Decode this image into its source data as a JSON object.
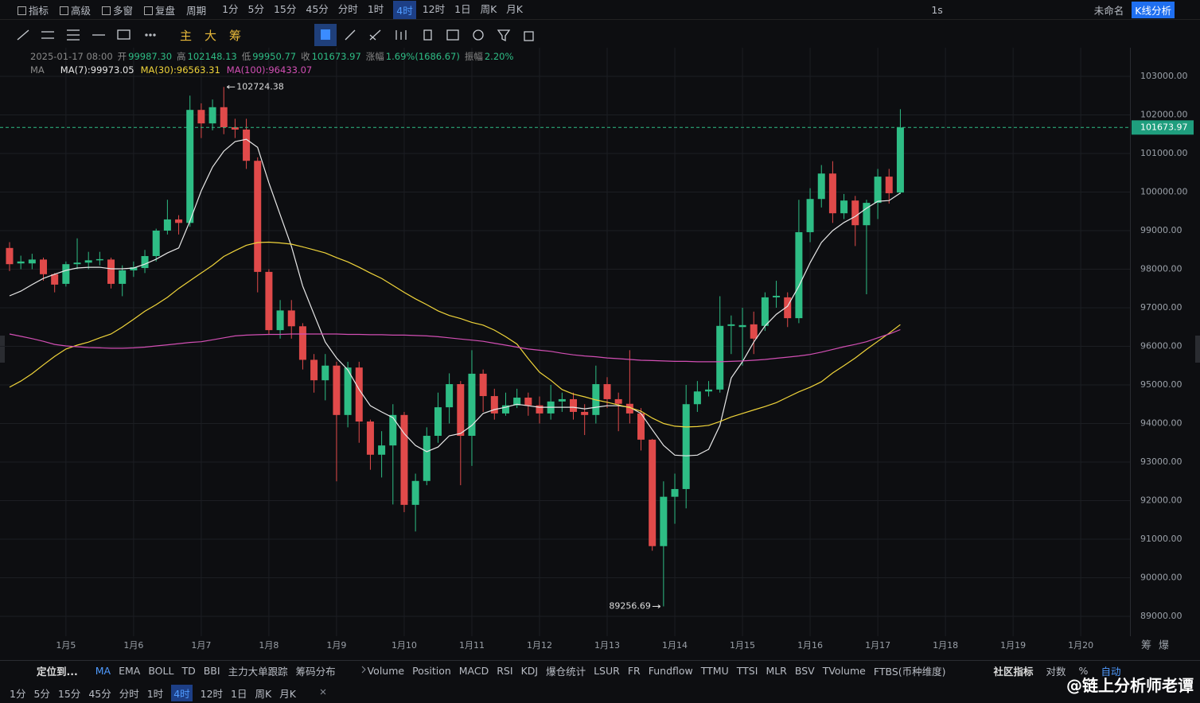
{
  "top_bar": {
    "left": [
      "指标",
      "高级",
      "多窗",
      "复盘"
    ],
    "period_label": "周期",
    "periods": [
      "1分",
      "5分",
      "15分",
      "45分",
      "分时",
      "1时",
      "4时",
      "12时",
      "1日",
      "周K",
      "月K"
    ],
    "active_period_index": 6,
    "interval": "1s",
    "layout_name": "未命名",
    "analysis": "K线分析"
  },
  "draw_toolbar": {
    "labels": [
      "主",
      "大",
      "筹"
    ]
  },
  "info": {
    "time": "2025-01-17 08:00",
    "items": [
      [
        "开",
        "99987.30"
      ],
      [
        "高",
        "102148.13"
      ],
      [
        "低",
        "99950.77"
      ],
      [
        "收",
        "101673.97"
      ],
      [
        "涨幅",
        "1.69%(1686.67)"
      ],
      [
        "振幅",
        "2.20%"
      ]
    ],
    "ma_label": "MA"
  },
  "chart_data": {
    "type": "candlestick",
    "categories": [
      null,
      null,
      null,
      null,
      null,
      "1月5",
      null,
      null,
      null,
      null,
      null,
      "1月6",
      null,
      null,
      null,
      null,
      null,
      "1月7",
      null,
      null,
      null,
      null,
      null,
      "1月8",
      null,
      null,
      null,
      null,
      null,
      "1月9",
      null,
      null,
      null,
      null,
      null,
      "1月10",
      null,
      null,
      null,
      null,
      null,
      "1月11",
      null,
      null,
      null,
      null,
      null,
      "1月12",
      null,
      null,
      null,
      null,
      null,
      "1月13",
      null,
      null,
      null,
      null,
      null,
      "1月14",
      null,
      null,
      null,
      null,
      null,
      "1月15",
      null,
      null,
      null,
      null,
      null,
      "1月16",
      null,
      null,
      null,
      null,
      null,
      "1月17",
      null,
      null
    ],
    "future_labels": [
      "1月18",
      "1月19",
      "1月20"
    ],
    "open": [
      98550,
      98150,
      98150,
      98250,
      97870,
      97620,
      98130,
      98170,
      98230,
      98250,
      97620,
      97970,
      98030,
      98340,
      99000,
      99290,
      99200,
      102130,
      101780,
      102200,
      101680,
      101620,
      100810,
      97930,
      96420,
      96930,
      96520,
      95650,
      95120,
      95500,
      94220,
      95450,
      94050,
      93190,
      93430,
      94220,
      91890,
      92510,
      93680,
      94420,
      95020,
      93680,
      95290,
      94710,
      94260,
      94470,
      94670,
      94470,
      94260,
      94570,
      94630,
      94300,
      94220,
      95020,
      94630,
      94510,
      94260,
      93580,
      90820,
      92100,
      92300,
      94500,
      94830,
      94880,
      96530,
      96500,
      96570,
      96530,
      97270,
      97270,
      96730,
      98960,
      99820,
      100480,
      99450,
      99780,
      99140,
      99720,
      100400,
      99987.3
    ],
    "high": [
      98700,
      98350,
      98400,
      98300,
      97900,
      98200,
      98800,
      98450,
      98450,
      98300,
      98100,
      98200,
      98500,
      99050,
      99800,
      99400,
      102500,
      102300,
      102400,
      102724.38,
      101900,
      101900,
      100900,
      98000,
      97200,
      97200,
      96600,
      95800,
      95800,
      95600,
      95600,
      95600,
      94100,
      93800,
      94500,
      94300,
      92700,
      93900,
      94800,
      95300,
      95100,
      95900,
      95400,
      94900,
      94800,
      94900,
      94800,
      94700,
      95000,
      94800,
      94800,
      94500,
      95500,
      95200,
      94800,
      95900,
      94400,
      93600,
      92500,
      92700,
      95000,
      95100,
      95100,
      97300,
      96800,
      97000,
      96900,
      97400,
      97700,
      97400,
      99800,
      100100,
      100700,
      100800,
      99950,
      99900,
      99800,
      100600,
      100600,
      102148.13
    ],
    "low": [
      97950,
      98000,
      98000,
      97700,
      97400,
      97550,
      98000,
      98000,
      98100,
      97500,
      97300,
      97800,
      97900,
      98200,
      98900,
      98900,
      99100,
      101400,
      101600,
      101500,
      101400,
      100600,
      97400,
      96300,
      96200,
      96200,
      95400,
      94800,
      94600,
      92500,
      93900,
      93500,
      92800,
      92600,
      91900,
      91700,
      91200,
      92400,
      93500,
      94000,
      92400,
      92900,
      94300,
      94100,
      94200,
      94400,
      94200,
      94000,
      94100,
      94300,
      94100,
      93700,
      94000,
      94400,
      93800,
      94000,
      93300,
      90700,
      89256.69,
      91400,
      91800,
      94300,
      94700,
      94800,
      95800,
      95500,
      95800,
      96400,
      97000,
      96500,
      96600,
      98700,
      99600,
      99200,
      99300,
      98600,
      97350,
      99300,
      99700,
      99950.77
    ],
    "close": [
      98130,
      98200,
      98250,
      97870,
      97600,
      98130,
      98170,
      98230,
      98260,
      97620,
      97970,
      98050,
      98340,
      99000,
      99290,
      99200,
      102130,
      101780,
      102200,
      101680,
      101620,
      100810,
      97930,
      96420,
      96930,
      96520,
      95650,
      95120,
      95500,
      94220,
      95450,
      94050,
      93190,
      93430,
      94220,
      91890,
      92510,
      93680,
      94420,
      95020,
      93680,
      95290,
      94710,
      94260,
      94470,
      94670,
      94470,
      94260,
      94570,
      94630,
      94300,
      94220,
      95020,
      94630,
      94510,
      94260,
      93580,
      90820,
      92100,
      92300,
      94500,
      94830,
      94880,
      96530,
      96570,
      96550,
      96200,
      97270,
      97310,
      96730,
      98960,
      99820,
      100480,
      99450,
      99780,
      99140,
      99720,
      100400,
      99970,
      101673.97
    ],
    "up_color": "#2ebd85",
    "down_color": "#e04a4a",
    "series": [
      {
        "name": "MA(7):99973.05",
        "color": "#e8e8e8",
        "values": [
          97310,
          97430,
          97600,
          97760,
          97870,
          97970,
          98030,
          98050,
          98050,
          98010,
          98010,
          98030,
          98130,
          98260,
          98420,
          98550,
          99250,
          100030,
          100650,
          101060,
          101310,
          101370,
          101160,
          100240,
          99410,
          98590,
          97560,
          96830,
          96110,
          95700,
          95390,
          94880,
          94460,
          94300,
          94150,
          93740,
          93430,
          93270,
          93390,
          93680,
          93740,
          93950,
          94260,
          94360,
          94420,
          94500,
          94460,
          94420,
          94420,
          94420,
          94420,
          94380,
          94420,
          94460,
          94460,
          94420,
          94260,
          93840,
          93430,
          93180,
          93160,
          93180,
          93330,
          93950,
          95180,
          95600,
          96110,
          96530,
          96830,
          97040,
          97560,
          98170,
          98690,
          99000,
          99210,
          99370,
          99580,
          99760,
          99780,
          99973.05
        ]
      },
      {
        "name": "MA(30):96563.31",
        "color": "#f0d43a",
        "values": [
          94940,
          95100,
          95290,
          95520,
          95740,
          95930,
          96030,
          96110,
          96220,
          96320,
          96500,
          96700,
          96910,
          97080,
          97270,
          97500,
          97700,
          97900,
          98100,
          98330,
          98480,
          98620,
          98690,
          98700,
          98680,
          98650,
          98580,
          98500,
          98420,
          98300,
          98190,
          98050,
          97900,
          97760,
          97580,
          97400,
          97230,
          97080,
          96920,
          96800,
          96720,
          96620,
          96550,
          96420,
          96250,
          96060,
          95680,
          95330,
          95120,
          94880,
          94760,
          94690,
          94610,
          94550,
          94480,
          94410,
          94320,
          94140,
          94000,
          93930,
          93910,
          93920,
          93950,
          94050,
          94170,
          94260,
          94350,
          94440,
          94540,
          94680,
          94820,
          94940,
          95080,
          95310,
          95500,
          95700,
          95920,
          96130,
          96340,
          96563.31
        ]
      },
      {
        "name": "MA(100):96433.07",
        "color": "#d24fb4",
        "values": [
          96320,
          96260,
          96200,
          96130,
          96050,
          96010,
          95990,
          95970,
          95960,
          95950,
          95950,
          95960,
          95980,
          96010,
          96040,
          96070,
          96100,
          96120,
          96170,
          96220,
          96270,
          96290,
          96300,
          96310,
          96310,
          96320,
          96320,
          96320,
          96320,
          96320,
          96310,
          96310,
          96300,
          96300,
          96290,
          96290,
          96280,
          96270,
          96250,
          96220,
          96190,
          96160,
          96130,
          96080,
          96030,
          95980,
          95930,
          95900,
          95870,
          95820,
          95780,
          95750,
          95730,
          95700,
          95680,
          95660,
          95640,
          95630,
          95620,
          95610,
          95610,
          95600,
          95600,
          95600,
          95610,
          95620,
          95640,
          95660,
          95690,
          95720,
          95750,
          95790,
          95850,
          95920,
          95990,
          96050,
          96120,
          96220,
          96320,
          96433.07
        ]
      }
    ],
    "ylim": [
      88600,
      104000
    ],
    "yticks": [
      {
        "value": 89000,
        "label": "89000.00"
      },
      {
        "value": 90000,
        "label": "90000.00"
      },
      {
        "value": 91000,
        "label": "91000.00"
      },
      {
        "value": 92000,
        "label": "92000.00"
      },
      {
        "value": 93000,
        "label": "93000.00"
      },
      {
        "value": 94000,
        "label": "94000.00"
      },
      {
        "value": 95000,
        "label": "95000.00"
      },
      {
        "value": 96000,
        "label": "96000.00"
      },
      {
        "value": 97000,
        "label": "97000.00"
      },
      {
        "value": 98000,
        "label": "98000.00"
      },
      {
        "value": 99000,
        "label": "99000.00"
      },
      {
        "value": 100000,
        "label": "100000.00"
      },
      {
        "value": 101000,
        "label": "101000.00"
      },
      {
        "value": 102000,
        "label": "102000.00"
      },
      {
        "value": 103000,
        "label": "103000.00"
      }
    ],
    "grid": true,
    "axis_corner": [
      "筹",
      "爆"
    ]
  },
  "bottom_bar": {
    "locate": "定位到...",
    "main_indicators": [
      "MA",
      "EMA",
      "BOLL",
      "TD",
      "BBI",
      "主力大单跟踪",
      "筹码分布"
    ],
    "sub_indicators": [
      "Volume",
      "Position",
      "MACD",
      "RSI",
      "KDJ",
      "爆仓统计",
      "LSUR",
      "FR",
      "Fundflow",
      "TTMU",
      "TTSI",
      "MLR",
      "BSV",
      "TVolume",
      "FTBS(币种维度)"
    ],
    "right": [
      "社区指标",
      "对数",
      "%",
      "自动"
    ]
  },
  "period_bar": {
    "periods": [
      "1分",
      "5分",
      "15分",
      "45分",
      "分时",
      "1时",
      "4时",
      "12时",
      "1日",
      "周K",
      "月K"
    ]
  },
  "watermark": "@链上分析师老谭"
}
